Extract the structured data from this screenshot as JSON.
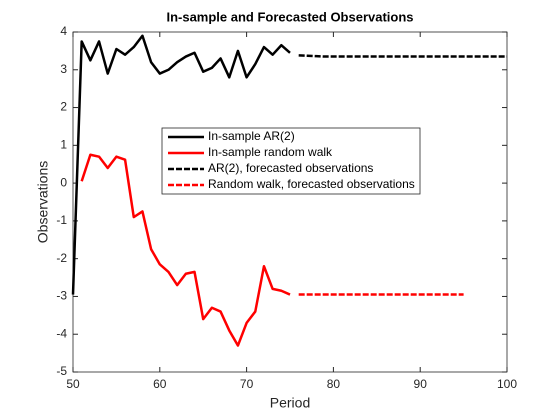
{
  "chart_data": {
    "type": "line",
    "title": "In-sample and Forecasted Observations",
    "x_label": "Period",
    "y_label": "Observations",
    "xlim": [
      50,
      100
    ],
    "xticks": [
      50,
      60,
      70,
      80,
      90,
      100
    ],
    "ylim": [
      -5,
      4
    ],
    "yticks": [
      -5,
      -4,
      -3,
      -2,
      -1,
      0,
      1,
      2,
      3,
      4
    ],
    "legend_position": "center",
    "series": [
      {
        "name": "In-sample AR(2)",
        "color": "#000000",
        "line_style": "solid",
        "x": [
          50,
          51,
          52,
          53,
          54,
          55,
          56,
          57,
          58,
          59,
          60,
          61,
          62,
          63,
          64,
          65,
          66,
          67,
          68,
          69,
          70,
          71,
          72,
          73,
          74,
          75
        ],
        "values": [
          -2.95,
          3.75,
          3.25,
          3.75,
          2.9,
          3.55,
          3.4,
          3.6,
          3.9,
          3.2,
          2.9,
          3.0,
          3.2,
          3.35,
          3.45,
          2.95,
          3.05,
          3.3,
          2.8,
          3.5,
          2.8,
          3.15,
          3.6,
          3.4,
          3.65,
          3.45
        ]
      },
      {
        "name": "In-sample random walk",
        "color": "#ff0000",
        "line_style": "solid",
        "x": [
          51,
          52,
          53,
          54,
          55,
          56,
          57,
          58,
          59,
          60,
          61,
          62,
          63,
          64,
          65,
          66,
          67,
          68,
          69,
          70,
          71,
          72,
          73,
          74,
          75
        ],
        "values": [
          0.05,
          0.75,
          0.7,
          0.4,
          0.7,
          0.62,
          -0.9,
          -0.75,
          -1.75,
          -2.15,
          -2.35,
          -2.7,
          -2.4,
          -2.35,
          -3.6,
          -3.3,
          -3.4,
          -3.9,
          -4.3,
          -3.7,
          -3.4,
          -2.2,
          -2.8,
          -2.85,
          -2.95
        ]
      },
      {
        "name": "AR(2), forecasted observations",
        "color": "#000000",
        "line_style": "dashed",
        "x": [
          76,
          77,
          78,
          79,
          80,
          81,
          82,
          83,
          84,
          85,
          86,
          87,
          88,
          89,
          90,
          91,
          92,
          93,
          94,
          95,
          96,
          97,
          98,
          99,
          100
        ],
        "values": [
          3.38,
          3.37,
          3.36,
          3.35,
          3.35,
          3.35,
          3.35,
          3.35,
          3.35,
          3.35,
          3.35,
          3.35,
          3.35,
          3.35,
          3.35,
          3.35,
          3.35,
          3.35,
          3.35,
          3.35,
          3.35,
          3.35,
          3.35,
          3.35,
          3.35
        ]
      },
      {
        "name": "Random walk, forecasted observations",
        "color": "#ff0000",
        "line_style": "dashed",
        "x": [
          76,
          77,
          78,
          79,
          80,
          81,
          82,
          83,
          84,
          85,
          86,
          87,
          88,
          89,
          90,
          91,
          92,
          93,
          94,
          95
        ],
        "values": [
          -2.95,
          -2.95,
          -2.95,
          -2.95,
          -2.95,
          -2.95,
          -2.95,
          -2.95,
          -2.95,
          -2.95,
          -2.95,
          -2.95,
          -2.95,
          -2.95,
          -2.95,
          -2.95,
          -2.95,
          -2.95,
          -2.95,
          -2.95
        ]
      }
    ]
  }
}
